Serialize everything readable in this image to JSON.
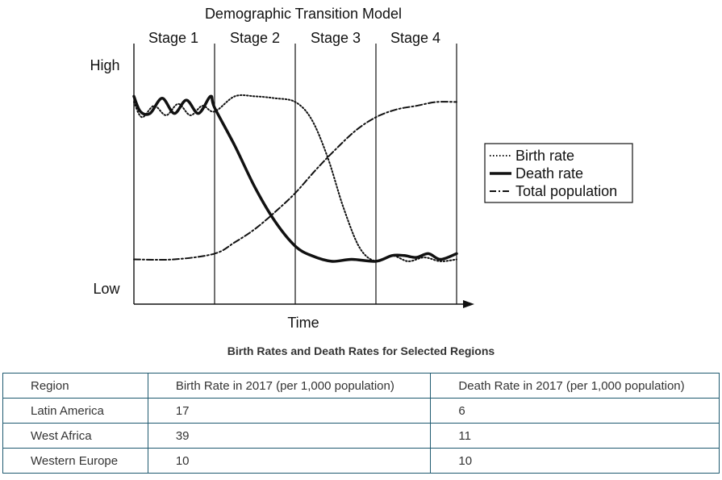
{
  "chart_data": {
    "type": "line",
    "title": "Demographic Transition Model",
    "xlabel": "Time",
    "y_levels": {
      "high": "High",
      "low": "Low"
    },
    "stages": [
      "Stage 1",
      "Stage 2",
      "Stage 3",
      "Stage 4"
    ],
    "xlim": [
      0,
      4
    ],
    "ylim": [
      0,
      1
    ],
    "grid": false,
    "legend_position": "right",
    "series": [
      {
        "name": "Birth rate",
        "style": "dotted",
        "x": [
          0,
          0.1,
          0.25,
          0.4,
          0.55,
          0.7,
          0.85,
          1.0,
          1.25,
          1.5,
          1.75,
          2.0,
          2.2,
          2.4,
          2.6,
          2.8,
          3.0,
          3.2,
          3.4,
          3.6,
          3.8,
          4.0
        ],
        "y": [
          0.93,
          0.85,
          0.91,
          0.86,
          0.92,
          0.86,
          0.91,
          0.88,
          0.96,
          0.96,
          0.95,
          0.93,
          0.84,
          0.64,
          0.37,
          0.16,
          0.09,
          0.12,
          0.09,
          0.11,
          0.09,
          0.1
        ]
      },
      {
        "name": "Death rate",
        "style": "solid",
        "x": [
          0,
          0.08,
          0.2,
          0.35,
          0.5,
          0.65,
          0.8,
          0.95,
          1.0,
          1.25,
          1.5,
          1.75,
          2.0,
          2.2,
          2.45,
          2.7,
          3.0,
          3.2,
          3.35,
          3.5,
          3.65,
          3.8,
          4.0
        ],
        "y": [
          0.96,
          0.88,
          0.87,
          0.95,
          0.87,
          0.94,
          0.87,
          0.96,
          0.9,
          0.7,
          0.48,
          0.3,
          0.17,
          0.12,
          0.09,
          0.1,
          0.09,
          0.12,
          0.12,
          0.11,
          0.13,
          0.1,
          0.13
        ]
      },
      {
        "name": "Total population",
        "style": "dash-dot",
        "x": [
          0,
          0.5,
          1.0,
          1.25,
          1.5,
          1.75,
          2.0,
          2.25,
          2.5,
          2.75,
          3.0,
          3.25,
          3.5,
          3.75,
          4.0
        ],
        "y": [
          0.1,
          0.1,
          0.13,
          0.19,
          0.26,
          0.35,
          0.45,
          0.57,
          0.68,
          0.78,
          0.85,
          0.89,
          0.91,
          0.93,
          0.93
        ]
      }
    ]
  },
  "table": {
    "title": "Birth Rates and Death Rates for Selected Regions",
    "headers": [
      "Region",
      "Birth Rate in 2017 (per 1,000 population)",
      "Death Rate in 2017 (per 1,000 population)"
    ],
    "rows": [
      {
        "region": "Latin America",
        "birth": "17",
        "death": "6"
      },
      {
        "region": "West Africa",
        "birth": "39",
        "death": "11"
      },
      {
        "region": "Western Europe",
        "birth": "10",
        "death": "10"
      }
    ]
  }
}
